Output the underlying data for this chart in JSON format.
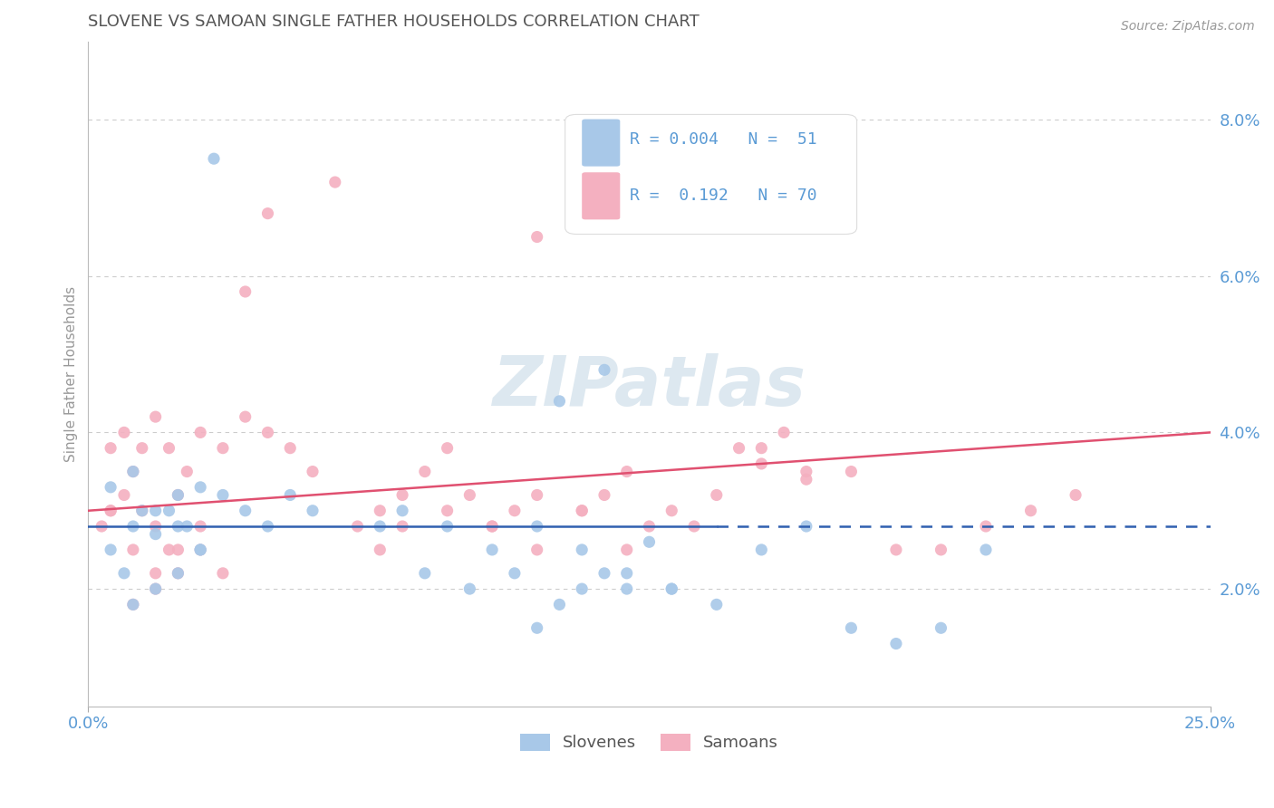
{
  "title": "SLOVENE VS SAMOAN SINGLE FATHER HOUSEHOLDS CORRELATION CHART",
  "source": "Source: ZipAtlas.com",
  "ylabel": "Single Father Households",
  "xlim": [
    0.0,
    0.25
  ],
  "ylim": [
    0.005,
    0.09
  ],
  "yticks": [
    0.02,
    0.04,
    0.06,
    0.08
  ],
  "ytick_labels": [
    "2.0%",
    "4.0%",
    "6.0%",
    "8.0%"
  ],
  "xtick_labels": [
    "0.0%",
    "25.0%"
  ],
  "background_color": "#ffffff",
  "grid_color": "#cccccc",
  "title_color": "#555555",
  "axis_color": "#5b9bd5",
  "slovene_color": "#a8c8e8",
  "samoan_color": "#f4b0c0",
  "slovene_line_color": "#3060b0",
  "samoan_line_color": "#e05070",
  "watermark_color": "#dde8f0",
  "legend_text_color": "#555555",
  "legend_R_color": "#5b9bd5"
}
